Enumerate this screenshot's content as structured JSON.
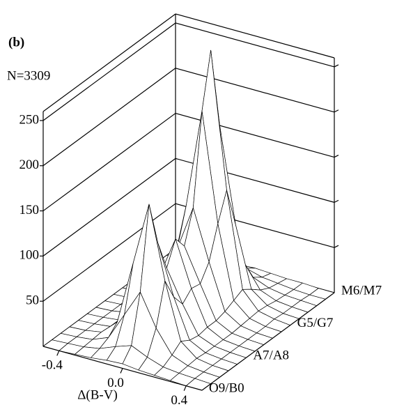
{
  "chart_data": {
    "type": "surface",
    "annotations": [
      "(b)",
      "N=3309"
    ],
    "x_label": "Δ(B-V)",
    "x": [
      -0.5,
      -0.4,
      -0.3,
      -0.2,
      -0.1,
      0.0,
      0.1,
      0.2,
      0.3,
      0.4,
      0.5
    ],
    "xlim": [
      -0.5,
      0.5
    ],
    "xticks": [
      -0.4,
      {
        "value": 0,
        "label": "0.0"
      },
      0.4
    ],
    "categories": [
      "O9/B0",
      null,
      null,
      null,
      null,
      "A7/A8",
      null,
      null,
      null,
      null,
      "G5/G7",
      null,
      null,
      null,
      null,
      "M6/M7"
    ],
    "zlim": [
      0,
      260
    ],
    "zticks": [
      50,
      100,
      150,
      200,
      250
    ],
    "grid": true,
    "color": "#000000",
    "z": [
      [
        0,
        0,
        1,
        2,
        4,
        5,
        3,
        2,
        1,
        0,
        0
      ],
      [
        0,
        1,
        2,
        5,
        12,
        18,
        10,
        4,
        2,
        1,
        0
      ],
      [
        0,
        1,
        3,
        10,
        40,
        70,
        35,
        10,
        3,
        1,
        0
      ],
      [
        0,
        1,
        4,
        20,
        90,
        160,
        80,
        18,
        4,
        1,
        0
      ],
      [
        0,
        1,
        3,
        15,
        60,
        110,
        55,
        12,
        3,
        1,
        0
      ],
      [
        0,
        1,
        3,
        12,
        45,
        75,
        40,
        10,
        3,
        1,
        0
      ],
      [
        0,
        1,
        4,
        15,
        55,
        100,
        50,
        12,
        3,
        1,
        0
      ],
      [
        0,
        1,
        4,
        14,
        50,
        85,
        48,
        12,
        3,
        1,
        0
      ],
      [
        0,
        1,
        5,
        18,
        70,
        120,
        65,
        15,
        4,
        1,
        0
      ],
      [
        0,
        1,
        6,
        25,
        110,
        220,
        100,
        20,
        5,
        1,
        0
      ],
      [
        0,
        2,
        8,
        30,
        140,
        280,
        130,
        25,
        6,
        2,
        0
      ],
      [
        0,
        1,
        6,
        22,
        95,
        190,
        85,
        18,
        5,
        1,
        0
      ],
      [
        0,
        1,
        4,
        12,
        40,
        80,
        35,
        10,
        3,
        1,
        0
      ],
      [
        0,
        1,
        2,
        6,
        15,
        25,
        12,
        5,
        2,
        1,
        0
      ],
      [
        0,
        0,
        1,
        3,
        6,
        10,
        5,
        3,
        1,
        0,
        0
      ],
      [
        0,
        0,
        1,
        1,
        2,
        3,
        2,
        1,
        1,
        0,
        0
      ]
    ]
  }
}
